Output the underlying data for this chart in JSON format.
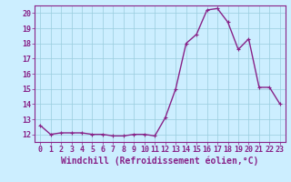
{
  "x": [
    0,
    1,
    2,
    3,
    4,
    5,
    6,
    7,
    8,
    9,
    10,
    11,
    12,
    13,
    14,
    15,
    16,
    17,
    18,
    19,
    20,
    21,
    22,
    23
  ],
  "y": [
    12.6,
    12.0,
    12.1,
    12.1,
    12.1,
    12.0,
    12.0,
    11.9,
    11.9,
    12.0,
    12.0,
    11.9,
    13.1,
    15.0,
    18.0,
    18.6,
    20.2,
    20.3,
    19.4,
    17.6,
    18.3,
    15.1,
    15.1,
    14.0
  ],
  "line_color": "#882288",
  "marker": "+",
  "marker_size": 3.5,
  "linewidth": 1.0,
  "xlabel": "Windchill (Refroidissement éolien,°C)",
  "xlabel_fontsize": 7,
  "ylim": [
    11.5,
    20.5
  ],
  "xlim": [
    -0.5,
    23.5
  ],
  "yticks": [
    12,
    13,
    14,
    15,
    16,
    17,
    18,
    19,
    20
  ],
  "xticks": [
    0,
    1,
    2,
    3,
    4,
    5,
    6,
    7,
    8,
    9,
    10,
    11,
    12,
    13,
    14,
    15,
    16,
    17,
    18,
    19,
    20,
    21,
    22,
    23
  ],
  "background_color": "#cceeff",
  "grid_color": "#99ccdd",
  "tick_fontsize": 6,
  "tick_color": "#882288"
}
